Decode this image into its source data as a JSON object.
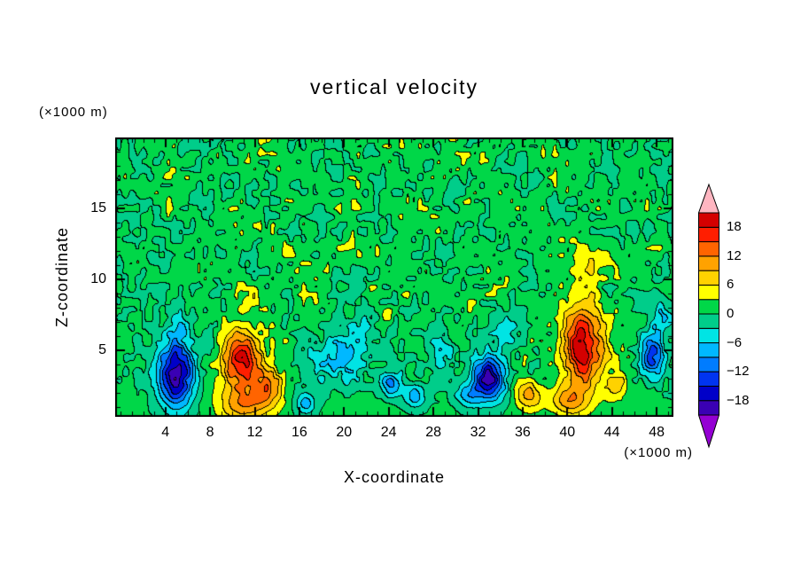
{
  "chart_data": {
    "type": "heatmap",
    "title": "vertical velocity",
    "xlabel": "X-coordinate",
    "ylabel": "Z-coordinate",
    "x_units": "(×1000 m)",
    "y_units": "(×1000 m)",
    "xlim": [
      -0.5,
      49.5
    ],
    "ylim": [
      0.3,
      20.0
    ],
    "x_ticks": [
      4,
      8,
      12,
      16,
      20,
      24,
      28,
      32,
      36,
      40,
      44,
      48
    ],
    "y_ticks": [
      5,
      10,
      15
    ],
    "minor_tick_step_x": 1,
    "minor_tick_step_y": 1,
    "grid": false,
    "legend_position": "right-colorbar",
    "level_min": -21,
    "level_step": 3,
    "levels": [
      -21,
      -18,
      -15,
      -12,
      -9,
      -6,
      -3,
      0,
      3,
      6,
      9,
      12,
      15,
      18,
      21
    ],
    "colorbar_ticks": [
      {
        "value": 18,
        "label": "18"
      },
      {
        "value": 12,
        "label": "12"
      },
      {
        "value": 6,
        "label": "6"
      },
      {
        "value": 0,
        "label": "0"
      },
      {
        "value": -6,
        "label": "−6"
      },
      {
        "value": -12,
        "label": "−12"
      },
      {
        "value": -18,
        "label": "−18"
      }
    ],
    "colors": {
      "under": "#9400d3",
      "over": "#ffb6c1",
      "bands": [
        "#3a00b4",
        "#0000c8",
        "#0034f0",
        "#007cff",
        "#00b8ff",
        "#00e4e4",
        "#00cd8a",
        "#00d748",
        "#ffff00",
        "#ffd200",
        "#ffa200",
        "#ff6400",
        "#ff1e00",
        "#d40000"
      ]
    },
    "field": {
      "background": 0.7,
      "noise": {
        "seed": 11,
        "octaves": [
          {
            "amp": 1.6,
            "scale": 1.5
          },
          {
            "amp": 2.3,
            "scale": 0.55
          }
        ],
        "taper_z_start": 1.0,
        "taper_z_full": 3.0,
        "taper_min": 0.12
      },
      "features": [
        {
          "x": 5.0,
          "z": 3.2,
          "rx": 1.5,
          "rz": 2.3,
          "amp": -20.5
        },
        {
          "x": 5.4,
          "z": 6.8,
          "rx": 1.0,
          "rz": 1.3,
          "amp": -6
        },
        {
          "x": 10.8,
          "z": 4.2,
          "rx": 1.8,
          "rz": 2.4,
          "amp": 18
        },
        {
          "x": 13.3,
          "z": 2.4,
          "rx": 1.4,
          "rz": 1.4,
          "amp": 12
        },
        {
          "x": 11.0,
          "z": 1.0,
          "rx": 2.2,
          "rz": 1.1,
          "amp": 8
        },
        {
          "x": 11.6,
          "z": 8.9,
          "rx": 1.2,
          "rz": 1.0,
          "amp": 5
        },
        {
          "x": 16.6,
          "z": 1.2,
          "rx": 0.9,
          "rz": 0.8,
          "amp": -8
        },
        {
          "x": 19.6,
          "z": 4.4,
          "rx": 2.4,
          "rz": 1.7,
          "amp": -8.5
        },
        {
          "x": 24.3,
          "z": 2.6,
          "rx": 1.0,
          "rz": 0.9,
          "amp": -11.5
        },
        {
          "x": 26.4,
          "z": 1.7,
          "rx": 1.0,
          "rz": 0.8,
          "amp": -8.5
        },
        {
          "x": 29.0,
          "z": 4.8,
          "rx": 1.4,
          "rz": 1.1,
          "amp": -5
        },
        {
          "x": 31.2,
          "z": 1.8,
          "rx": 1.1,
          "rz": 0.9,
          "amp": -7.5
        },
        {
          "x": 33.0,
          "z": 3.0,
          "rx": 1.5,
          "rz": 1.6,
          "amp": -19.5
        },
        {
          "x": 34.6,
          "z": 6.2,
          "rx": 1.0,
          "rz": 0.9,
          "amp": -5
        },
        {
          "x": 36.6,
          "z": 1.8,
          "rx": 1.3,
          "rz": 1.1,
          "amp": 8.5
        },
        {
          "x": 41.4,
          "z": 5.2,
          "rx": 1.8,
          "rz": 2.9,
          "amp": 19.5
        },
        {
          "x": 40.2,
          "z": 1.4,
          "rx": 1.6,
          "rz": 1.0,
          "amp": 9
        },
        {
          "x": 44.3,
          "z": 2.2,
          "rx": 1.1,
          "rz": 0.9,
          "amp": 6.5
        },
        {
          "x": 47.6,
          "z": 4.6,
          "rx": 1.0,
          "rz": 1.6,
          "amp": -14.5
        },
        {
          "x": 48.7,
          "z": 7.3,
          "rx": 0.8,
          "rz": 0.9,
          "amp": -7.5
        },
        {
          "x": 42.0,
          "z": 11.2,
          "rx": 1.8,
          "rz": 1.4,
          "amp": 4.5
        },
        {
          "x": 7.9,
          "z": 5.4,
          "rx": 0.9,
          "rz": 1.0,
          "amp": -5.5
        },
        {
          "x": 21.4,
          "z": 6.4,
          "rx": 1.0,
          "rz": 0.8,
          "amp": -4.5
        }
      ]
    }
  }
}
